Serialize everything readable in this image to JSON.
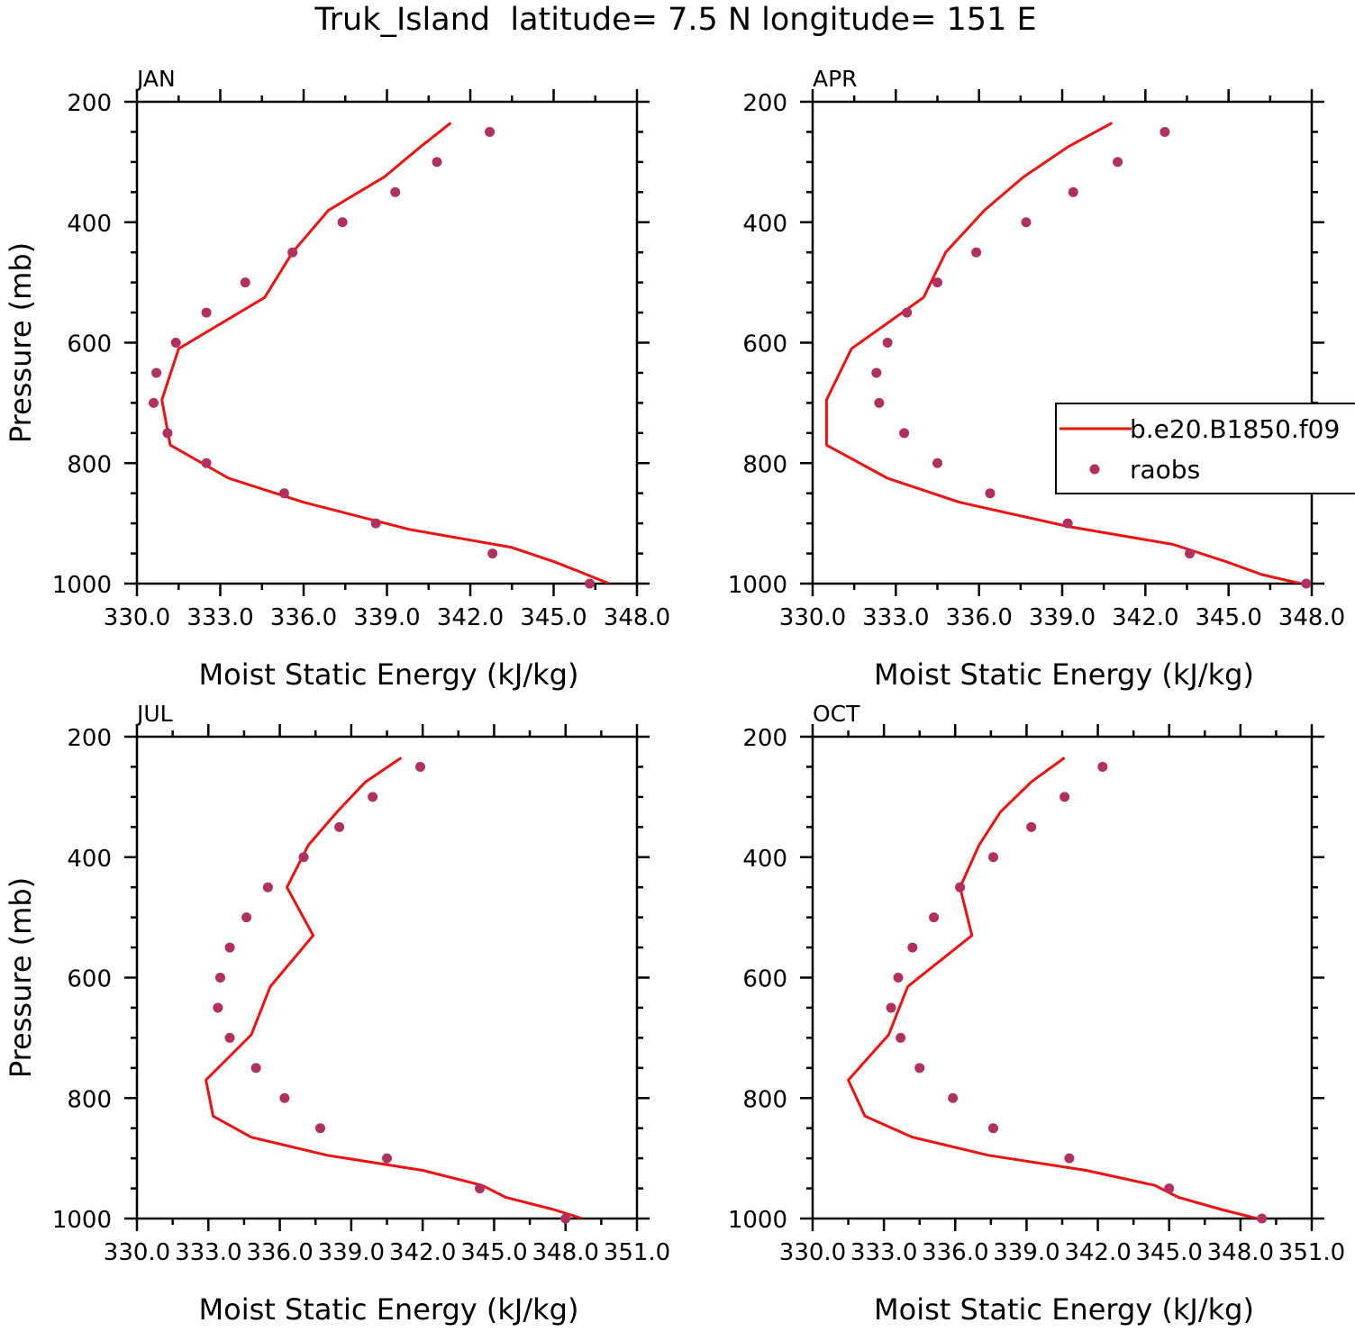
{
  "title": "Truk_Island  latitude= 7.5 N longitude= 151 E",
  "colors": {
    "model_line": "#ee1111",
    "obs_marker": "#b03060",
    "axes": "#000000"
  },
  "legend": {
    "placement": "right-middle of APR panel",
    "model_label": "b.e20.B1850.f09",
    "obs_label": "raobs"
  },
  "chart_data": [
    {
      "type": "line",
      "panel": "JAN",
      "xlabel": "Moist Static Energy (kJ/kg)",
      "ylabel": "Pressure (mb)",
      "xlim": [
        330,
        348
      ],
      "ylim": [
        1000,
        200
      ],
      "y_reversed": true,
      "x_ticks": [
        "330.0",
        "333.0",
        "336.0",
        "339.0",
        "342.0",
        "345.0",
        "348.0"
      ],
      "y_ticks": [
        "200",
        "400",
        "600",
        "800",
        "1000"
      ],
      "series": [
        {
          "name": "b.e20.B1850.f09",
          "style": "line",
          "x": [
            341.3,
            340.2,
            338.9,
            336.9,
            335.6,
            334.6,
            331.5,
            330.9,
            331.2,
            333.3,
            336.0,
            339.8,
            343.5,
            345.1,
            347.0
          ],
          "y": [
            235,
            275,
            325,
            380,
            450,
            525,
            610,
            695,
            770,
            825,
            865,
            910,
            940,
            965,
            1000
          ]
        },
        {
          "name": "raobs",
          "style": "points",
          "x": [
            342.7,
            340.8,
            339.3,
            337.4,
            335.6,
            333.9,
            332.5,
            331.4,
            330.7,
            330.6,
            331.1,
            332.5,
            335.3,
            338.6,
            342.8,
            346.3
          ],
          "y": [
            250,
            300,
            350,
            400,
            450,
            500,
            550,
            600,
            650,
            700,
            750,
            800,
            850,
            900,
            950,
            1000
          ]
        }
      ]
    },
    {
      "type": "line",
      "panel": "APR",
      "xlabel": "Moist Static Energy (kJ/kg)",
      "ylabel": "",
      "xlim": [
        330,
        348
      ],
      "ylim": [
        1000,
        200
      ],
      "y_reversed": true,
      "x_ticks": [
        "330.0",
        "333.0",
        "336.0",
        "339.0",
        "342.0",
        "345.0",
        "348.0"
      ],
      "y_ticks": [
        "200",
        "400",
        "600",
        "800",
        "1000"
      ],
      "series": [
        {
          "name": "b.e20.B1850.f09",
          "style": "line",
          "x": [
            340.8,
            339.2,
            337.6,
            336.2,
            334.8,
            334.0,
            331.4,
            330.5,
            330.5,
            332.7,
            335.3,
            339.2,
            343.0,
            345.0,
            346.2,
            347.6
          ],
          "y": [
            235,
            275,
            325,
            380,
            450,
            525,
            610,
            695,
            770,
            825,
            865,
            905,
            935,
            965,
            985,
            1000
          ]
        },
        {
          "name": "raobs",
          "style": "points",
          "x": [
            342.7,
            341.0,
            339.4,
            337.7,
            335.9,
            334.5,
            333.4,
            332.7,
            332.3,
            332.4,
            333.3,
            334.5,
            336.4,
            339.2,
            343.6,
            347.8
          ],
          "y": [
            250,
            300,
            350,
            400,
            450,
            500,
            550,
            600,
            650,
            700,
            750,
            800,
            850,
            900,
            950,
            1000
          ]
        }
      ]
    },
    {
      "type": "line",
      "panel": "JUL",
      "xlabel": "Moist Static Energy (kJ/kg)",
      "ylabel": "Pressure (mb)",
      "xlim": [
        330,
        351
      ],
      "ylim": [
        1000,
        200
      ],
      "y_reversed": true,
      "x_ticks": [
        "330.0",
        "333.0",
        "336.0",
        "339.0",
        "342.0",
        "345.0",
        "348.0",
        "351.0"
      ],
      "y_ticks": [
        "200",
        "400",
        "600",
        "800",
        "1000"
      ],
      "series": [
        {
          "name": "b.e20.B1850.f09",
          "style": "line",
          "x": [
            341.1,
            339.6,
            338.4,
            337.2,
            336.3,
            337.4,
            335.6,
            334.8,
            332.9,
            333.2,
            334.8,
            338.0,
            342.0,
            344.5,
            345.5,
            347.5,
            348.7
          ],
          "y": [
            235,
            275,
            325,
            380,
            450,
            530,
            615,
            695,
            770,
            830,
            865,
            895,
            920,
            945,
            965,
            985,
            1000
          ]
        },
        {
          "name": "raobs",
          "style": "points",
          "x": [
            341.9,
            339.9,
            338.5,
            337.0,
            335.5,
            334.6,
            333.9,
            333.5,
            333.4,
            333.9,
            335.0,
            336.2,
            337.7,
            340.5,
            344.4,
            348.0
          ],
          "y": [
            250,
            300,
            350,
            400,
            450,
            500,
            550,
            600,
            650,
            700,
            750,
            800,
            850,
            900,
            950,
            1000
          ]
        }
      ]
    },
    {
      "type": "line",
      "panel": "OCT",
      "xlabel": "Moist Static Energy (kJ/kg)",
      "ylabel": "",
      "xlim": [
        330,
        351
      ],
      "ylim": [
        1000,
        200
      ],
      "y_reversed": true,
      "x_ticks": [
        "330.0",
        "333.0",
        "336.0",
        "339.0",
        "342.0",
        "345.0",
        "348.0",
        "351.0"
      ],
      "y_ticks": [
        "200",
        "400",
        "600",
        "800",
        "1000"
      ],
      "series": [
        {
          "name": "b.e20.B1850.f09",
          "style": "line",
          "x": [
            340.6,
            339.2,
            337.9,
            337.0,
            336.2,
            336.7,
            334.0,
            333.2,
            331.5,
            332.2,
            334.2,
            337.4,
            341.5,
            344.4,
            345.4,
            347.2,
            348.7
          ],
          "y": [
            235,
            275,
            325,
            380,
            450,
            530,
            615,
            695,
            770,
            830,
            865,
            895,
            920,
            945,
            965,
            985,
            1000
          ]
        },
        {
          "name": "raobs",
          "style": "points",
          "x": [
            342.2,
            340.6,
            339.2,
            337.6,
            336.2,
            335.1,
            334.2,
            333.6,
            333.3,
            333.7,
            334.5,
            335.9,
            337.6,
            340.8,
            345.0,
            348.9
          ],
          "y": [
            250,
            300,
            350,
            400,
            450,
            500,
            550,
            600,
            650,
            700,
            750,
            800,
            850,
            900,
            950,
            1000
          ]
        }
      ]
    }
  ]
}
